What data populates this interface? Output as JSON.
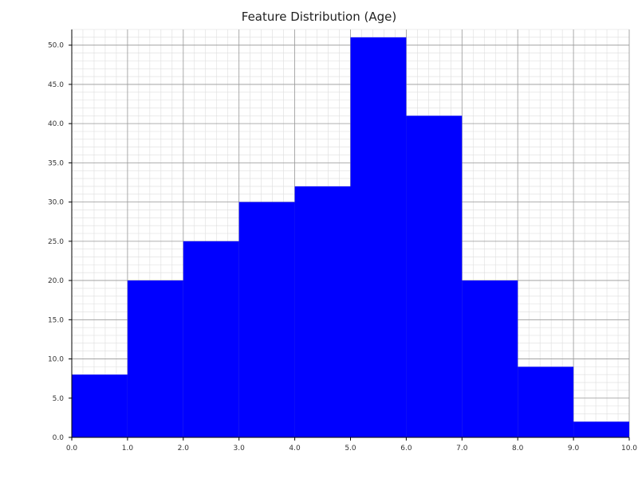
{
  "chart_data": {
    "type": "bar",
    "title": "Feature Distribution (Age)",
    "xlabel": "",
    "ylabel": "",
    "bin_edges": [
      0,
      1,
      2,
      3,
      4,
      5,
      6,
      7,
      8,
      9,
      10
    ],
    "values": [
      8,
      20,
      25,
      30,
      32,
      51,
      41,
      20,
      9,
      2
    ],
    "xlim": [
      0,
      10
    ],
    "ylim": [
      0,
      52
    ],
    "x_ticks": [
      "0.0",
      "1.0",
      "2.0",
      "3.0",
      "4.0",
      "5.0",
      "6.0",
      "7.0",
      "8.0",
      "9.0",
      "10.0"
    ],
    "y_ticks": [
      "0.0",
      "5.0",
      "10.0",
      "15.0",
      "20.0",
      "25.0",
      "30.0",
      "35.0",
      "40.0",
      "45.0",
      "50.0"
    ],
    "grid": true,
    "minor_grid": true,
    "bar_color": "#0000ff"
  }
}
